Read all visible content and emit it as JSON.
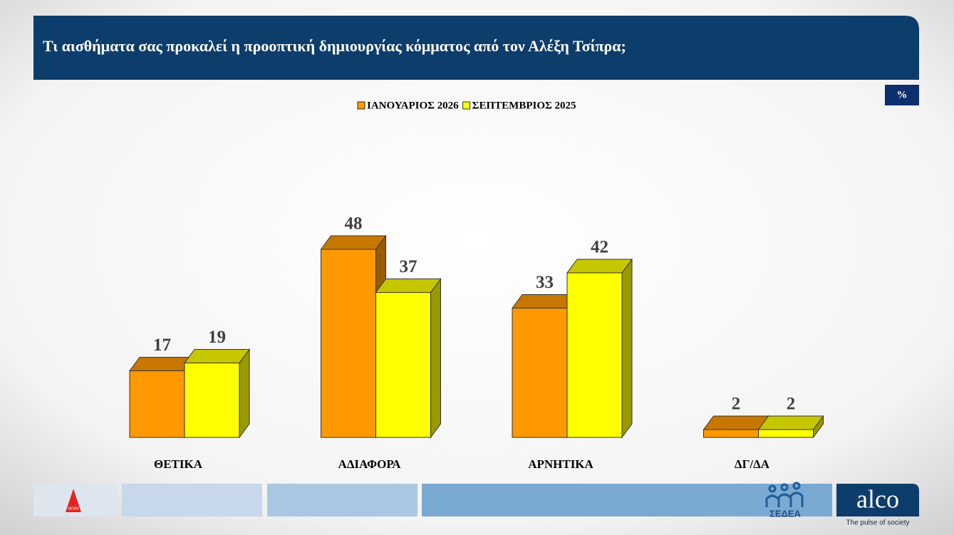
{
  "chart_data": {
    "type": "bar3d",
    "title": "Τι αισθήματα σας προκαλεί η προοπτική δημιουργίας κόμματος από τον Αλέξη Τσίπρα;",
    "unit": "%",
    "categories": [
      "ΘΕΤΙΚΑ",
      "ΑΔΙΑΦΟΡΑ",
      "ΑΡΝΗΤΙΚΑ",
      "ΔΓ/ΔΑ"
    ],
    "series": [
      {
        "name": "ΙΑΝΟΥΑΡΙΟΣ 2026",
        "color": "#ff9900",
        "values": [
          17,
          48,
          33,
          2
        ]
      },
      {
        "name": "ΣΕΠΤΕΜΒΡΙΟΣ 2025",
        "color": "#ffff00",
        "values": [
          19,
          37,
          42,
          2
        ]
      }
    ]
  },
  "footer": {
    "news_logo": "NEWS",
    "sedea": "ΣΕΔΕΑ",
    "brand": "alco",
    "tagline": "The pulse of society"
  }
}
